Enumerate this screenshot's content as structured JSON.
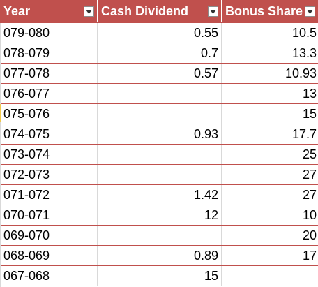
{
  "table": {
    "headers": {
      "year": "Year",
      "cash": "Cash Dividend",
      "bonus": "Bonus Share"
    },
    "header_color": "#c0504d",
    "rows": [
      {
        "year": "079-080",
        "cash": "0.55",
        "bonus": "10.5"
      },
      {
        "year": "078-079",
        "cash": "0.7",
        "bonus": "13.3"
      },
      {
        "year": "077-078",
        "cash": "0.57",
        "bonus": "10.93"
      },
      {
        "year": "076-077",
        "cash": "",
        "bonus": "13"
      },
      {
        "year": "075-076",
        "cash": "",
        "bonus": "15"
      },
      {
        "year": "074-075",
        "cash": "0.93",
        "bonus": "17.7"
      },
      {
        "year": "073-074",
        "cash": "",
        "bonus": "25"
      },
      {
        "year": "072-073",
        "cash": "",
        "bonus": "27"
      },
      {
        "year": "071-072",
        "cash": "1.42",
        "bonus": "27"
      },
      {
        "year": "070-071",
        "cash": "12",
        "bonus": "10"
      },
      {
        "year": "069-070",
        "cash": "",
        "bonus": "20"
      },
      {
        "year": "068-069",
        "cash": "0.89",
        "bonus": "17"
      },
      {
        "year": "067-068",
        "cash": "15",
        "bonus": ""
      }
    ]
  }
}
